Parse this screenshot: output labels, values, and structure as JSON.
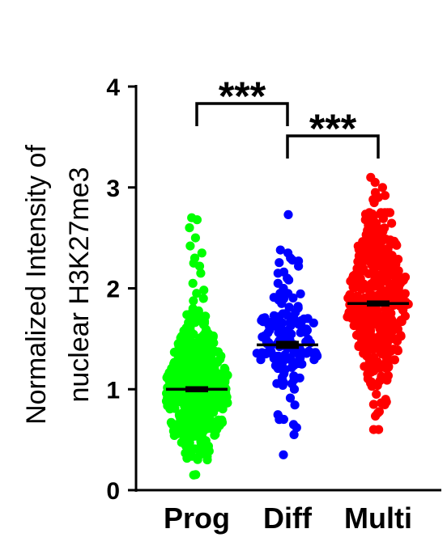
{
  "chart_data": {
    "type": "scatter",
    "ylabel_lines": [
      "Normalized Intensity of",
      "nuclear H3K27me3"
    ],
    "ylim": [
      0,
      4
    ],
    "yticks": [
      "0",
      "1",
      "2",
      "3",
      "4"
    ],
    "categories": [
      "Prog",
      "Diff",
      "Multi"
    ],
    "series": [
      {
        "color": "#00ff00",
        "mean": 1.0,
        "sem": 0.03,
        "min": 0.15,
        "max": 2.7,
        "count": 520,
        "spread": 0.33,
        "outliers": [
          2.7,
          2.68,
          2.6,
          2.5,
          2.42,
          2.35,
          2.3,
          2.25,
          2.22,
          2.15,
          2.05,
          1.95,
          1.9,
          1.8,
          1.75,
          1.7
        ]
      },
      {
        "color": "#0000ff",
        "mean": 1.44,
        "sem": 0.04,
        "min": 0.35,
        "max": 2.73,
        "count": 150,
        "spread": 0.28,
        "outliers": [
          2.73,
          2.38,
          2.35,
          2.3,
          2.28,
          2.22,
          2.15,
          2.1,
          2.05,
          2.0,
          1.95,
          0.35,
          0.55,
          0.62,
          0.65,
          0.7
        ]
      },
      {
        "color": "#ff0000",
        "mean": 1.85,
        "sem": 0.03,
        "min": 0.6,
        "max": 3.1,
        "count": 420,
        "spread": 0.42,
        "outliers": [
          3.1,
          3.05,
          3.0,
          2.95,
          2.92,
          2.9,
          2.88,
          2.85,
          0.6,
          0.85,
          0.88,
          0.9
        ]
      }
    ],
    "significance": [
      {
        "from": 0,
        "to": 1,
        "label": "***"
      },
      {
        "from": 1,
        "to": 2,
        "label": "***"
      }
    ]
  }
}
